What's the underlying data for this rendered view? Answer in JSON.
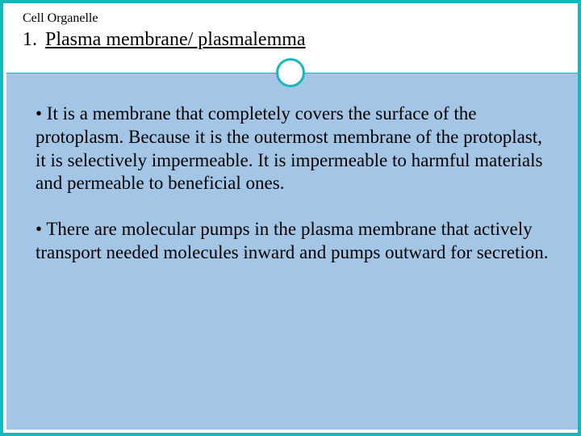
{
  "slide": {
    "breadcrumb": "Cell Organelle",
    "list_number": "1.",
    "title": "Plasma membrane/ plasmalemma",
    "paragraphs": [
      "•   It is a membrane that completely covers the surface of the protoplasm. Because it is the outermost membrane of the protoplast, it is selectively impermeable.  It is impermeable to harmful materials and permeable to beneficial ones.",
      "• There are molecular pumps in the plasma membrane that actively transport needed molecules inward and pumps outward for secretion."
    ]
  },
  "styling": {
    "border_color": "#17b8bd",
    "body_background": "#a4c6e6",
    "text_color": "#000000",
    "title_fontsize": 24,
    "breadcrumb_fontsize": 16,
    "body_fontsize": 23,
    "border_width": 4,
    "circle_diameter": 36,
    "circle_border_width": 3,
    "slide_width": 720,
    "slide_height": 540
  }
}
